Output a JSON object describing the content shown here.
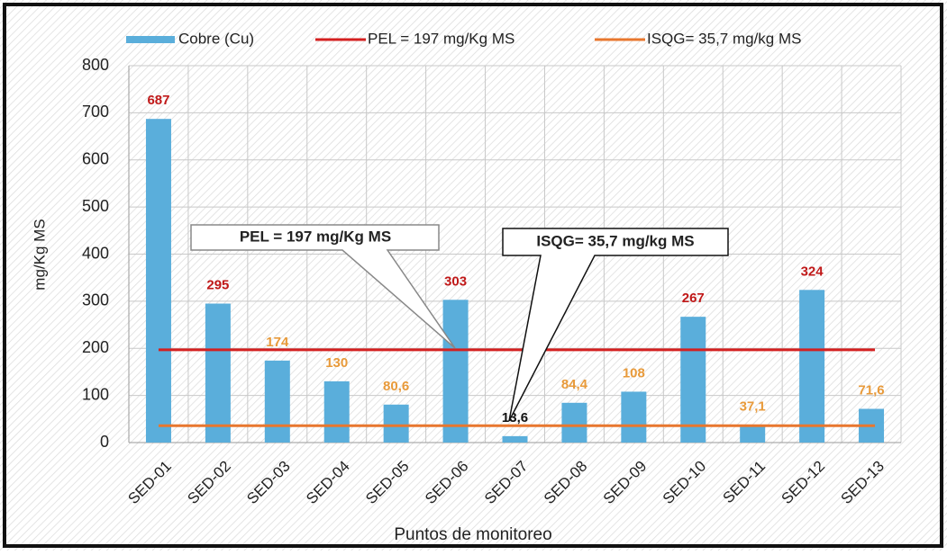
{
  "chart_data": {
    "type": "bar",
    "y_label": "mg/Kg MS",
    "x_label": "Puntos de monitoreo",
    "categories": [
      "SED-01",
      "SED-02",
      "SED-03",
      "SED-04",
      "SED-05",
      "SED-06",
      "SED-07",
      "SED-08",
      "SED-09",
      "SED-10",
      "SED-11",
      "SED-12",
      "SED-13"
    ],
    "series": [
      {
        "name": "Cobre (Cu)",
        "color": "#5aaedb",
        "values": [
          687,
          295,
          174,
          130,
          80.6,
          303,
          13.6,
          84.4,
          108,
          267,
          37.1,
          324,
          71.6
        ],
        "value_labels": [
          "687",
          "295",
          "174",
          "130",
          "80,6",
          "303",
          "13,6",
          "84,4",
          "108",
          "267",
          "37,1",
          "324",
          "71,6"
        ]
      }
    ],
    "reference_lines": [
      {
        "name": "PEL = 197 mg/Kg MS",
        "value": 197,
        "color": "#d42020"
      },
      {
        "name": "ISQG= 35,7 mg/kg MS",
        "value": 35.7,
        "color": "#e8772e"
      }
    ],
    "annotations": [
      {
        "text": "PEL = 197 mg/Kg MS"
      },
      {
        "text": "ISQG= 35,7 mg/kg MS"
      }
    ],
    "ylim": [
      0,
      800
    ],
    "yticks": [
      0,
      100,
      200,
      300,
      400,
      500,
      600,
      700,
      800
    ],
    "grid": true,
    "legend": "top"
  }
}
